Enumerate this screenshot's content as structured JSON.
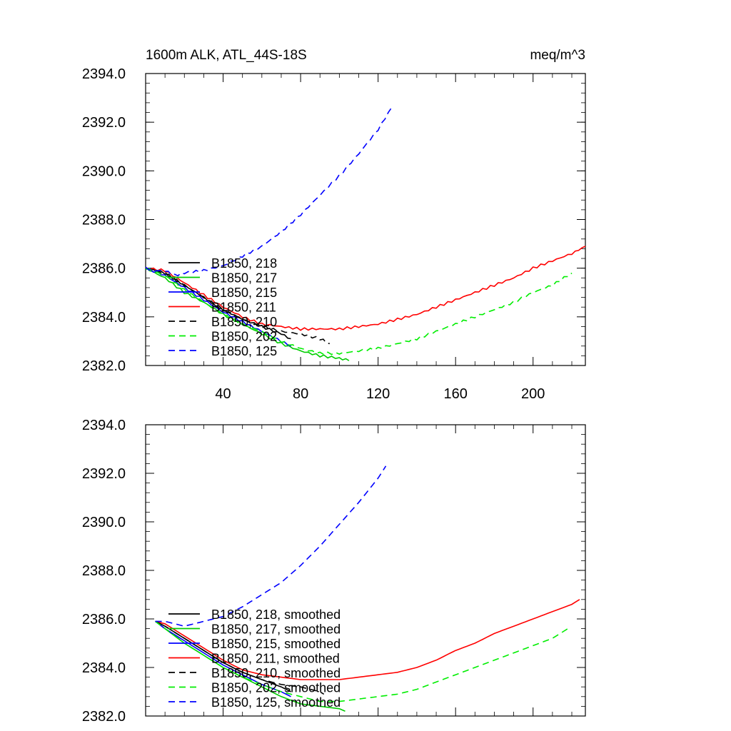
{
  "chart_data": [
    {
      "type": "line",
      "title_left": "1600m ALK, ATL_44S-18S",
      "title_right": "meq/m^3",
      "xlim": [
        0,
        227
      ],
      "ylim": [
        2382.0,
        2394.0
      ],
      "xticks": [
        40,
        80,
        120,
        160,
        200
      ],
      "xtick_labels": [
        "40",
        "80",
        "120",
        "160",
        "200"
      ],
      "yticks": [
        2382.0,
        2384.0,
        2386.0,
        2388.0,
        2390.0,
        2392.0,
        2394.0
      ],
      "ytick_labels": [
        "2382.0",
        "2384.0",
        "2386.0",
        "2388.0",
        "2390.0",
        "2392.0",
        "2394.0"
      ],
      "series": [
        {
          "name": "B1850, 218",
          "color": "#000000",
          "dash": "solid",
          "x": [
            0,
            10,
            20,
            30,
            40,
            50,
            60,
            70,
            75
          ],
          "y": [
            2386.0,
            2385.8,
            2385.3,
            2384.8,
            2384.3,
            2383.9,
            2383.6,
            2383.3,
            2383.1
          ]
        },
        {
          "name": "B1850, 217",
          "color": "#00cc00",
          "dash": "solid",
          "x": [
            0,
            10,
            20,
            30,
            40,
            50,
            60,
            70,
            80,
            90,
            100,
            105
          ],
          "y": [
            2386.0,
            2385.6,
            2385.0,
            2384.6,
            2384.1,
            2383.7,
            2383.3,
            2382.9,
            2382.6,
            2382.4,
            2382.3,
            2382.2
          ]
        },
        {
          "name": "B1850, 215",
          "color": "#0000ff",
          "dash": "solid",
          "x": [
            0,
            10,
            20,
            30,
            40,
            50,
            60,
            70,
            75
          ],
          "y": [
            2386.0,
            2385.7,
            2385.2,
            2384.7,
            2384.2,
            2383.8,
            2383.4,
            2383.0,
            2382.8
          ]
        },
        {
          "name": "B1850, 211",
          "color": "#ff0000",
          "dash": "solid",
          "x": [
            0,
            10,
            20,
            30,
            40,
            50,
            60,
            70,
            80,
            90,
            100,
            110,
            120,
            130,
            140,
            150,
            160,
            170,
            180,
            190,
            200,
            210,
            220,
            227
          ],
          "y": [
            2386.0,
            2385.9,
            2385.4,
            2384.9,
            2384.4,
            2384.0,
            2383.7,
            2383.6,
            2383.5,
            2383.5,
            2383.5,
            2383.6,
            2383.7,
            2383.9,
            2384.1,
            2384.4,
            2384.7,
            2385.0,
            2385.3,
            2385.6,
            2386.0,
            2386.3,
            2386.6,
            2386.9
          ]
        },
        {
          "name": "B1850, 210",
          "color": "#000000",
          "dash": "dashed",
          "x": [
            0,
            10,
            20,
            30,
            40,
            50,
            60,
            70,
            80,
            90,
            95
          ],
          "y": [
            2386.0,
            2385.8,
            2385.3,
            2384.8,
            2384.3,
            2383.9,
            2383.6,
            2383.4,
            2383.3,
            2383.1,
            2382.9
          ]
        },
        {
          "name": "B1850, 202",
          "color": "#00ee00",
          "dash": "dashed",
          "x": [
            0,
            10,
            20,
            30,
            40,
            50,
            60,
            70,
            80,
            90,
            100,
            110,
            120,
            130,
            140,
            150,
            160,
            170,
            180,
            190,
            200,
            210,
            220
          ],
          "y": [
            2386.0,
            2385.7,
            2385.1,
            2384.6,
            2384.1,
            2383.7,
            2383.4,
            2383.0,
            2382.7,
            2382.5,
            2382.5,
            2382.6,
            2382.7,
            2382.9,
            2383.1,
            2383.4,
            2383.7,
            2384.0,
            2384.3,
            2384.6,
            2385.0,
            2385.3,
            2385.8
          ]
        },
        {
          "name": "B1850, 125",
          "color": "#0000ff",
          "dash": "dashed",
          "x": [
            0,
            5,
            10,
            15,
            20,
            30,
            40,
            50,
            60,
            70,
            80,
            90,
            100,
            110,
            120,
            127
          ],
          "y": [
            2386.0,
            2385.9,
            2385.9,
            2385.7,
            2385.8,
            2385.9,
            2386.1,
            2386.5,
            2386.9,
            2387.5,
            2388.2,
            2389.0,
            2389.8,
            2390.7,
            2391.7,
            2392.6
          ]
        }
      ]
    },
    {
      "type": "line",
      "xlim": [
        0,
        227
      ],
      "ylim": [
        2382.0,
        2394.0
      ],
      "xticks": [
        40,
        80,
        120,
        160,
        200
      ],
      "yticks": [
        2382.0,
        2384.0,
        2386.0,
        2388.0,
        2390.0,
        2392.0,
        2394.0
      ],
      "ytick_labels": [
        "2382.0",
        "2384.0",
        "2386.0",
        "2388.0",
        "2390.0",
        "2392.0",
        "2394.0"
      ],
      "series": [
        {
          "name": "B1850, 218, smoothed",
          "color": "#000000",
          "dash": "solid",
          "x": [
            5,
            10,
            20,
            30,
            40,
            50,
            60,
            70,
            75
          ],
          "y": [
            2385.9,
            2385.7,
            2385.2,
            2384.7,
            2384.2,
            2383.8,
            2383.5,
            2383.2,
            2383.0
          ]
        },
        {
          "name": "B1850, 217, smoothed",
          "color": "#00cc00",
          "dash": "solid",
          "x": [
            5,
            10,
            20,
            30,
            40,
            50,
            60,
            70,
            80,
            90,
            100,
            103
          ],
          "y": [
            2385.9,
            2385.6,
            2385.0,
            2384.5,
            2384.0,
            2383.6,
            2383.2,
            2382.8,
            2382.5,
            2382.4,
            2382.3,
            2382.2
          ]
        },
        {
          "name": "B1850, 215, smoothed",
          "color": "#0000ff",
          "dash": "solid",
          "x": [
            5,
            10,
            20,
            30,
            40,
            50,
            60,
            70,
            75
          ],
          "y": [
            2385.9,
            2385.6,
            2385.1,
            2384.6,
            2384.1,
            2383.7,
            2383.3,
            2383.0,
            2382.8
          ]
        },
        {
          "name": "B1850, 211, smoothed",
          "color": "#ff0000",
          "dash": "solid",
          "x": [
            5,
            10,
            20,
            30,
            40,
            50,
            60,
            70,
            80,
            90,
            100,
            110,
            120,
            130,
            140,
            150,
            160,
            170,
            180,
            190,
            200,
            210,
            220,
            224
          ],
          "y": [
            2385.9,
            2385.8,
            2385.3,
            2384.8,
            2384.3,
            2383.9,
            2383.7,
            2383.6,
            2383.5,
            2383.5,
            2383.5,
            2383.6,
            2383.7,
            2383.8,
            2384.0,
            2384.3,
            2384.7,
            2385.0,
            2385.4,
            2385.7,
            2386.0,
            2386.3,
            2386.6,
            2386.8
          ]
        },
        {
          "name": "B1850, 210, smoothed",
          "color": "#000000",
          "dash": "dashed",
          "x": [
            5,
            10,
            20,
            30,
            40,
            50,
            60,
            70,
            80,
            90,
            92
          ],
          "y": [
            2385.9,
            2385.7,
            2385.2,
            2384.7,
            2384.2,
            2383.8,
            2383.5,
            2383.3,
            2383.2,
            2383.0,
            2382.9
          ]
        },
        {
          "name": "B1850, 202, smoothed",
          "color": "#00ee00",
          "dash": "dashed",
          "x": [
            5,
            10,
            20,
            30,
            40,
            50,
            60,
            70,
            80,
            90,
            100,
            110,
            120,
            130,
            140,
            150,
            160,
            170,
            180,
            190,
            200,
            210,
            218
          ],
          "y": [
            2385.9,
            2385.6,
            2385.0,
            2384.5,
            2384.0,
            2383.6,
            2383.3,
            2383.0,
            2382.8,
            2382.6,
            2382.6,
            2382.7,
            2382.8,
            2382.9,
            2383.1,
            2383.4,
            2383.7,
            2384.0,
            2384.3,
            2384.6,
            2384.9,
            2385.2,
            2385.6
          ]
        },
        {
          "name": "B1850, 125, smoothed",
          "color": "#0000ff",
          "dash": "dashed",
          "x": [
            5,
            10,
            15,
            20,
            30,
            40,
            50,
            60,
            70,
            80,
            90,
            100,
            110,
            120,
            124
          ],
          "y": [
            2385.9,
            2385.9,
            2385.8,
            2385.7,
            2385.9,
            2386.1,
            2386.5,
            2387.0,
            2387.5,
            2388.2,
            2389.0,
            2389.9,
            2390.8,
            2391.8,
            2392.3
          ]
        }
      ]
    }
  ]
}
